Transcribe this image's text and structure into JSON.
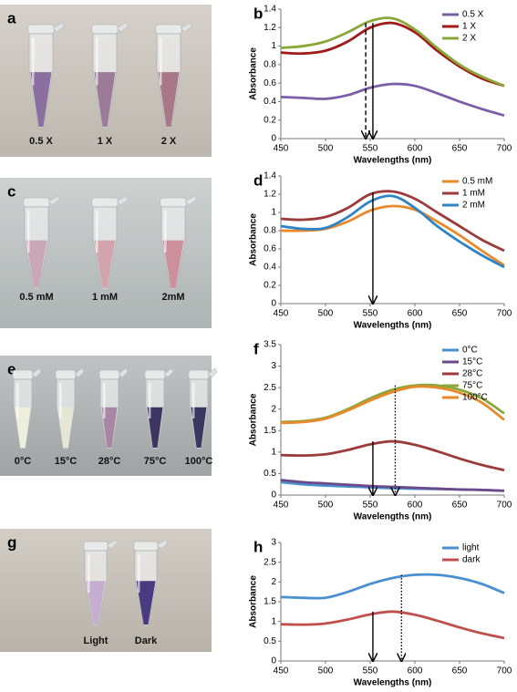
{
  "chart_data": [
    {
      "type": "line",
      "panel": "b",
      "x_label": "Wavelengths (nm)",
      "y_label": "Absorbance",
      "x": [
        450,
        475,
        500,
        525,
        550,
        575,
        600,
        625,
        650,
        675,
        700
      ],
      "xlim": [
        450,
        700
      ],
      "xticks": [
        450,
        500,
        550,
        600,
        650,
        700
      ],
      "ylim": [
        0,
        1.4
      ],
      "yticks": [
        0,
        0.2,
        0.4,
        0.6,
        0.8,
        1,
        1.2,
        1.4
      ],
      "legend": "upper right",
      "series": [
        {
          "name": "0.5 X",
          "color": "#7b5ea7",
          "values": [
            0.45,
            0.44,
            0.43,
            0.47,
            0.55,
            0.59,
            0.57,
            0.49,
            0.4,
            0.32,
            0.25
          ]
        },
        {
          "name": "1 X",
          "color": "#a11a1a",
          "values": [
            0.93,
            0.92,
            0.95,
            1.05,
            1.2,
            1.25,
            1.15,
            0.95,
            0.78,
            0.65,
            0.57
          ]
        },
        {
          "name": "2 X",
          "color": "#8aa83a",
          "values": [
            0.98,
            1.0,
            1.05,
            1.15,
            1.27,
            1.3,
            1.18,
            0.98,
            0.8,
            0.67,
            0.57
          ]
        }
      ],
      "arrows": [
        {
          "x": 545,
          "y": 1.25,
          "style": "dashed"
        },
        {
          "x": 553,
          "y": 1.25,
          "style": "solid"
        }
      ]
    },
    {
      "type": "line",
      "panel": "d",
      "x_label": "Wavelengths (nm)",
      "y_label": "Absorbance",
      "x": [
        450,
        475,
        500,
        525,
        550,
        575,
        600,
        625,
        650,
        675,
        700
      ],
      "xlim": [
        450,
        700
      ],
      "xticks": [
        450,
        500,
        550,
        600,
        650,
        700
      ],
      "ylim": [
        0,
        1.4
      ],
      "yticks": [
        0,
        0.2,
        0.4,
        0.6,
        0.8,
        1,
        1.2,
        1.4
      ],
      "legend": "upper right",
      "series": [
        {
          "name": "0.5 mM",
          "color": "#e8892b",
          "values": [
            0.8,
            0.8,
            0.82,
            0.9,
            1.02,
            1.07,
            1.03,
            0.9,
            0.75,
            0.58,
            0.42
          ]
        },
        {
          "name": "1 mM",
          "color": "#9b3b3b",
          "values": [
            0.93,
            0.92,
            0.95,
            1.05,
            1.2,
            1.23,
            1.15,
            1.0,
            0.85,
            0.7,
            0.58
          ]
        },
        {
          "name": "2 mM",
          "color": "#2f84c6",
          "values": [
            0.85,
            0.82,
            0.83,
            0.95,
            1.12,
            1.18,
            1.05,
            0.85,
            0.68,
            0.53,
            0.4
          ]
        }
      ],
      "arrows": [
        {
          "x": 553,
          "y": 1.22,
          "style": "solid"
        }
      ]
    },
    {
      "type": "line",
      "panel": "f",
      "x_label": "Wavelengths (nm)",
      "y_label": "Absorbance",
      "x": [
        450,
        475,
        500,
        525,
        550,
        575,
        600,
        625,
        650,
        675,
        700
      ],
      "xlim": [
        450,
        700
      ],
      "xticks": [
        450,
        500,
        550,
        600,
        650,
        700
      ],
      "ylim": [
        0,
        3.5
      ],
      "yticks": [
        0,
        0.5,
        1,
        1.5,
        2,
        2.5,
        3,
        3.5
      ],
      "legend": "upper right",
      "series": [
        {
          "name": "0°C",
          "color": "#4a8fd0",
          "values": [
            0.3,
            0.25,
            0.22,
            0.2,
            0.18,
            0.16,
            0.15,
            0.14,
            0.13,
            0.12,
            0.1
          ]
        },
        {
          "name": "15°C",
          "color": "#6b4a8a",
          "values": [
            0.35,
            0.3,
            0.27,
            0.24,
            0.21,
            0.19,
            0.17,
            0.15,
            0.13,
            0.12,
            0.1
          ]
        },
        {
          "name": "28°C",
          "color": "#9b3b3b",
          "values": [
            0.93,
            0.92,
            0.95,
            1.05,
            1.18,
            1.25,
            1.17,
            1.02,
            0.85,
            0.7,
            0.58
          ]
        },
        {
          "name": "75°C",
          "color": "#8aa83a",
          "values": [
            1.7,
            1.72,
            1.8,
            2.0,
            2.25,
            2.45,
            2.55,
            2.55,
            2.45,
            2.25,
            1.9
          ]
        },
        {
          "name": "100°C",
          "color": "#e8892b",
          "values": [
            1.68,
            1.7,
            1.78,
            1.97,
            2.2,
            2.4,
            2.52,
            2.5,
            2.38,
            2.15,
            1.75
          ]
        }
      ],
      "arrows": [
        {
          "x": 553,
          "y": 1.25,
          "style": "solid"
        },
        {
          "x": 578,
          "y": 2.55,
          "style": "dotted"
        }
      ]
    },
    {
      "type": "line",
      "panel": "h",
      "x_label": "Wavelengths (nm)",
      "y_label": "Absorbance",
      "x": [
        450,
        475,
        500,
        525,
        550,
        575,
        600,
        625,
        650,
        675,
        700
      ],
      "xlim": [
        450,
        700
      ],
      "xticks": [
        450,
        500,
        550,
        600,
        650,
        700
      ],
      "ylim": [
        0,
        3
      ],
      "yticks": [
        0,
        0.5,
        1,
        1.5,
        2,
        2.5,
        3
      ],
      "legend": "upper right",
      "series": [
        {
          "name": "light",
          "color": "#4a8fd0",
          "values": [
            1.62,
            1.6,
            1.6,
            1.75,
            1.95,
            2.1,
            2.18,
            2.18,
            2.1,
            1.95,
            1.72
          ]
        },
        {
          "name": "dark",
          "color": "#c0504d",
          "values": [
            0.93,
            0.92,
            0.95,
            1.05,
            1.18,
            1.25,
            1.17,
            1.02,
            0.85,
            0.7,
            0.58
          ]
        }
      ],
      "arrows": [
        {
          "x": 553,
          "y": 1.25,
          "style": "solid"
        },
        {
          "x": 585,
          "y": 2.18,
          "style": "dotted"
        }
      ]
    }
  ],
  "photo_panels": [
    {
      "letter": "a",
      "labels": [
        "0.5 X",
        "1 X",
        "2 X"
      ]
    },
    {
      "letter": "c",
      "labels": [
        "0.5 mM",
        "1 mM",
        "2mM"
      ]
    },
    {
      "letter": "e",
      "labels": [
        "0°C",
        "15°C",
        "28°C",
        "75°C",
        "100°C"
      ]
    },
    {
      "letter": "g",
      "labels": [
        "Light",
        "Dark"
      ]
    }
  ]
}
